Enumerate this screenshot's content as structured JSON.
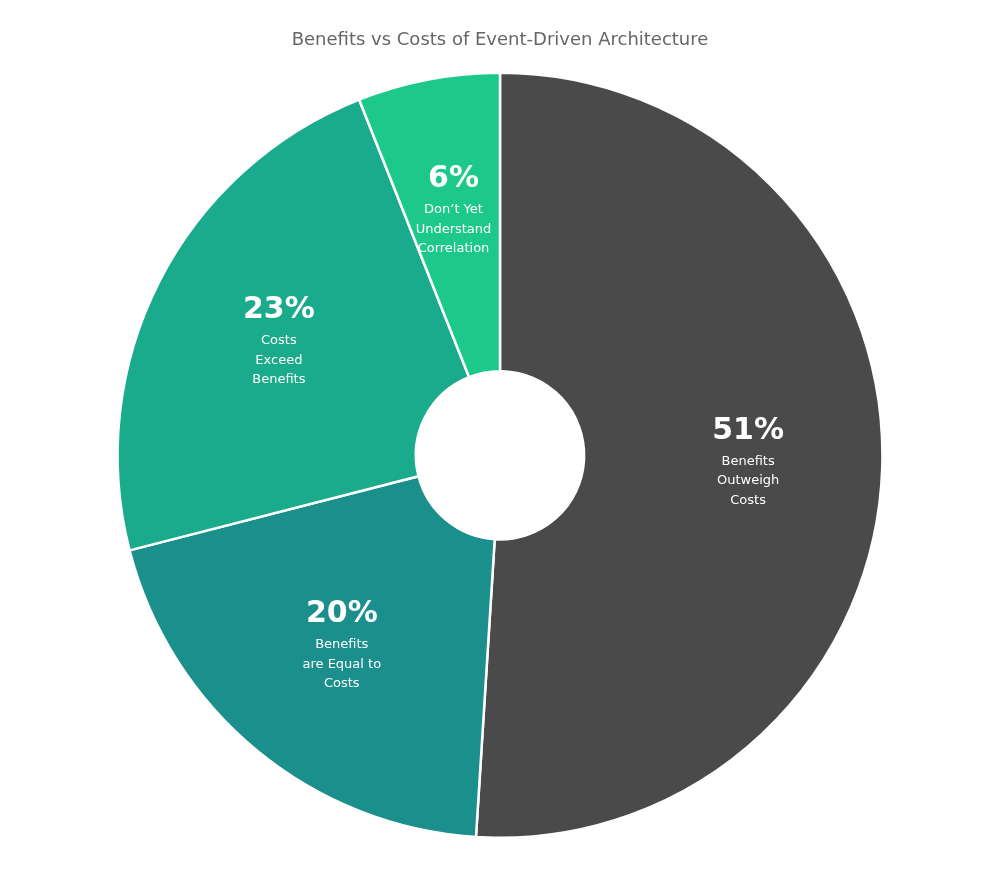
{
  "chart_data": {
    "type": "donut",
    "title": "Benefits vs Costs of Event-Driven Architecture",
    "categories": [
      "Benefits\nOutweigh\nCosts",
      "Benefits\nare Equal to\nCosts",
      "Costs\nExceed\nBenefits",
      "Don’t Yet\nUnderstand\nCorrelation"
    ],
    "values": [
      51,
      20,
      23,
      6
    ],
    "value_labels": [
      "51%",
      "20%",
      "23%",
      "6%"
    ],
    "colors": [
      "#4a4a4a",
      "#1a8f8c",
      "#1aaa8c",
      "#1dc98a"
    ],
    "data_labels": true,
    "legend": false
  }
}
